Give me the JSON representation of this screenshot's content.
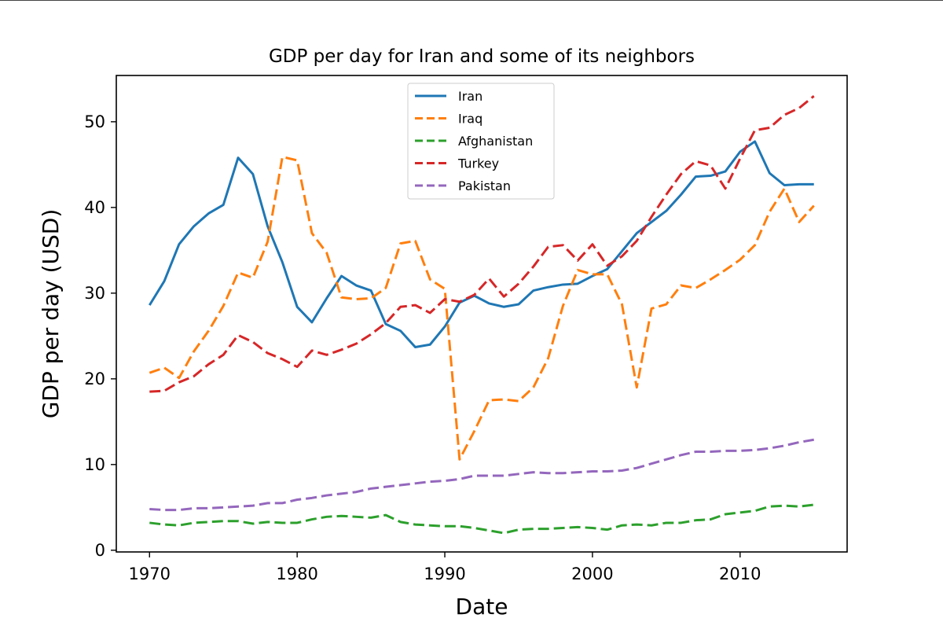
{
  "chart_data": {
    "type": "line",
    "title": "GDP per day for Iran and some of its neighbors",
    "xlabel": "Date",
    "ylabel": "GDP per day (USD)",
    "xlim": [
      1967.75,
      2017.25
    ],
    "ylim": [
      -0.2,
      55.4
    ],
    "xticks": [
      1970,
      1980,
      1990,
      2000,
      2010
    ],
    "yticks": [
      0,
      10,
      20,
      30,
      40,
      50
    ],
    "grid": false,
    "legend_position": "top-center",
    "x": [
      1970,
      1971,
      1972,
      1973,
      1974,
      1975,
      1976,
      1977,
      1978,
      1979,
      1980,
      1981,
      1982,
      1983,
      1984,
      1985,
      1986,
      1987,
      1988,
      1989,
      1990,
      1991,
      1992,
      1993,
      1994,
      1995,
      1996,
      1997,
      1998,
      1999,
      2000,
      2001,
      2002,
      2003,
      2004,
      2005,
      2006,
      2007,
      2008,
      2009,
      2010,
      2011,
      2012,
      2013,
      2014,
      2015
    ],
    "series": [
      {
        "name": "Iran",
        "color": "#1f77b4",
        "dash": "solid",
        "values": [
          28.6,
          31.4,
          35.7,
          37.8,
          39.3,
          40.3,
          45.8,
          43.9,
          37.8,
          33.6,
          28.4,
          26.6,
          29.4,
          32.0,
          30.9,
          30.3,
          26.4,
          25.6,
          23.7,
          24.0,
          26.1,
          28.9,
          29.7,
          28.8,
          28.4,
          28.7,
          30.3,
          30.7,
          31.0,
          31.1,
          32.0,
          32.8,
          34.9,
          37.0,
          38.3,
          39.6,
          41.5,
          43.6,
          43.7,
          44.2,
          46.5,
          47.7,
          44.0,
          42.6,
          42.7,
          42.7
        ]
      },
      {
        "name": "Iraq",
        "color": "#ff7f0e",
        "dash": "dashed",
        "values": [
          20.7,
          21.3,
          20.1,
          23.2,
          25.6,
          28.5,
          32.4,
          31.8,
          36.0,
          45.9,
          45.5,
          37.0,
          34.7,
          29.5,
          29.3,
          29.4,
          30.6,
          35.8,
          36.1,
          31.6,
          30.5,
          10.6,
          13.9,
          17.5,
          17.6,
          17.4,
          19.0,
          22.4,
          28.5,
          32.7,
          32.2,
          32.2,
          28.7,
          19.0,
          28.2,
          28.7,
          30.9,
          30.6,
          31.6,
          32.7,
          33.9,
          35.6,
          39.5,
          42.2,
          38.3,
          40.2
        ]
      },
      {
        "name": "Afghanistan",
        "color": "#2ca02c",
        "dash": "dashed",
        "values": [
          3.2,
          3.0,
          2.9,
          3.2,
          3.3,
          3.4,
          3.4,
          3.1,
          3.3,
          3.2,
          3.2,
          3.6,
          3.9,
          4.0,
          3.9,
          3.8,
          4.1,
          3.3,
          3.0,
          2.9,
          2.8,
          2.8,
          2.6,
          2.3,
          2.0,
          2.4,
          2.5,
          2.5,
          2.6,
          2.7,
          2.6,
          2.4,
          2.9,
          3.0,
          2.9,
          3.2,
          3.2,
          3.5,
          3.6,
          4.2,
          4.4,
          4.6,
          5.1,
          5.2,
          5.1,
          5.3
        ]
      },
      {
        "name": "Turkey",
        "color": "#d62728",
        "dash": "dashed",
        "values": [
          18.5,
          18.6,
          19.6,
          20.3,
          21.7,
          22.8,
          25.1,
          24.3,
          23.0,
          22.3,
          21.4,
          23.3,
          22.8,
          23.4,
          24.1,
          25.2,
          26.5,
          28.4,
          28.6,
          27.7,
          29.3,
          29.0,
          29.8,
          31.7,
          29.6,
          31.1,
          33.1,
          35.4,
          35.6,
          33.8,
          35.7,
          33.2,
          34.3,
          36.1,
          38.9,
          41.5,
          43.9,
          45.4,
          44.9,
          42.2,
          45.7,
          49.0,
          49.3,
          50.8,
          51.6,
          53.0
        ]
      },
      {
        "name": "Pakistan",
        "color": "#9467bd",
        "dash": "dashed",
        "values": [
          4.8,
          4.7,
          4.7,
          4.9,
          4.9,
          5.0,
          5.1,
          5.2,
          5.5,
          5.5,
          5.9,
          6.1,
          6.4,
          6.6,
          6.8,
          7.2,
          7.4,
          7.6,
          7.8,
          8.0,
          8.1,
          8.3,
          8.7,
          8.7,
          8.7,
          8.9,
          9.1,
          9.0,
          9.0,
          9.1,
          9.2,
          9.2,
          9.3,
          9.6,
          10.1,
          10.6,
          11.1,
          11.5,
          11.5,
          11.6,
          11.6,
          11.7,
          11.9,
          12.2,
          12.6,
          12.9
        ]
      }
    ]
  }
}
